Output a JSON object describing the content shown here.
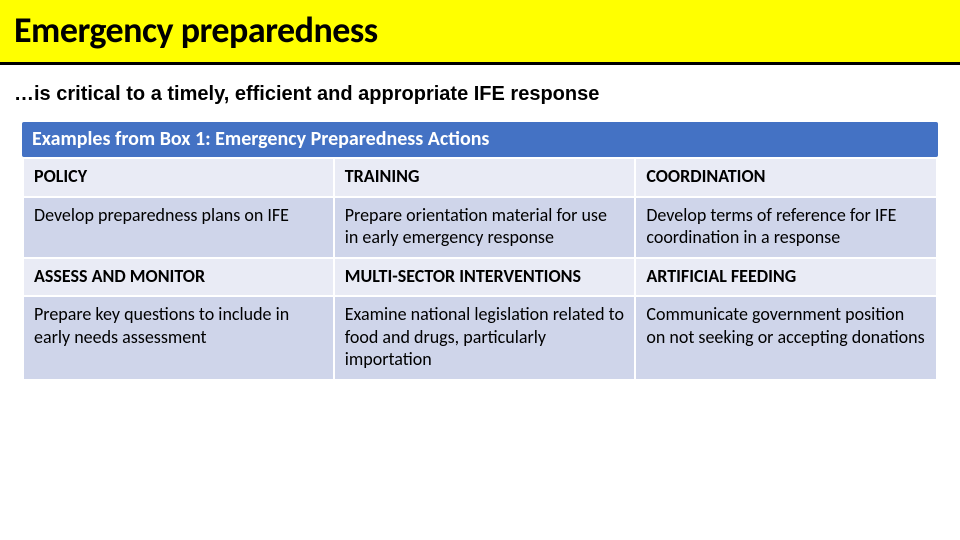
{
  "title": {
    "text": "Emergency preparedness",
    "band_color": "#ffff00",
    "underline_color": "#000000",
    "underline_height": 3,
    "font_size": 36,
    "font_color": "#000000"
  },
  "subtitle": {
    "text": "…is critical to a timely, efficient and appropriate IFE response",
    "font_size": 20,
    "font_color": "#000000"
  },
  "table": {
    "caption": {
      "text": "Examples from Box 1: Emergency Preparedness Actions",
      "bg_color": "#4472c4",
      "font_size": 20
    },
    "font_size": 18,
    "header_bg": "#e9ebf5",
    "row_bg_a": "#cfd5ea",
    "row_bg_b": "#e9ebf5",
    "col_widths": [
      "34%",
      "33%",
      "33%"
    ],
    "rows": [
      {
        "type": "header",
        "cells": [
          "POLICY",
          "TRAINING",
          "COORDINATION"
        ]
      },
      {
        "type": "body",
        "cells": [
          "Develop preparedness plans on IFE",
          "Prepare orientation material for use in early emergency response",
          "Develop terms of reference for IFE coordination in a response"
        ]
      },
      {
        "type": "header",
        "cells": [
          "ASSESS AND MONITOR",
          "MULTI-SECTOR INTERVENTIONS",
          "ARTIFICIAL FEEDING"
        ]
      },
      {
        "type": "body",
        "cells": [
          "Prepare key questions to include in early needs assessment",
          "Examine national legislation related to food and drugs, particularly importation",
          "Communicate government position on not seeking or accepting donations"
        ]
      }
    ]
  }
}
